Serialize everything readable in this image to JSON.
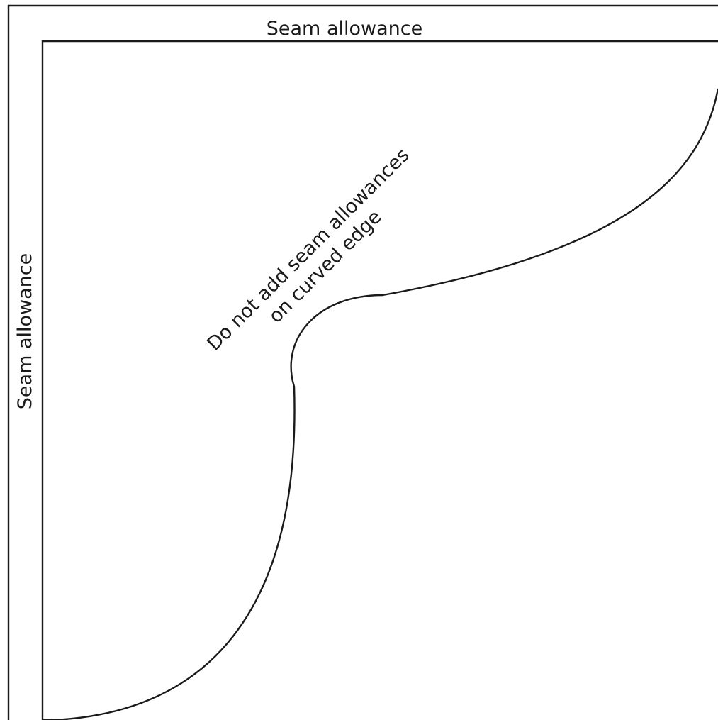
{
  "diagram": {
    "top_label": "Seam allowance",
    "side_label": "Seam allowance",
    "curve_note": {
      "line1": "Do not add seam allowances",
      "line2": "on curved edge"
    },
    "colors": {
      "line": "#1a1a1a",
      "background": "#ffffff"
    }
  }
}
